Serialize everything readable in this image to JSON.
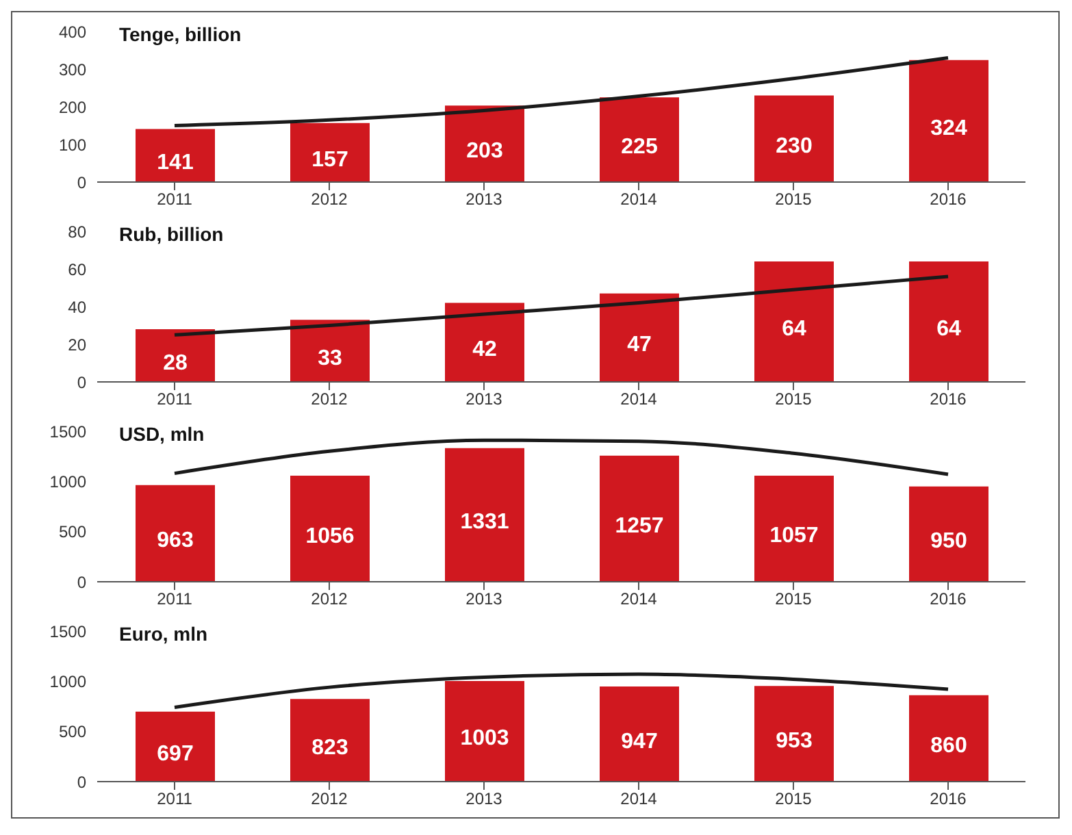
{
  "chart_data": [
    {
      "type": "bar",
      "title": "Tenge, billion",
      "categories": [
        "2011",
        "2012",
        "2013",
        "2014",
        "2015",
        "2016"
      ],
      "series": [
        {
          "color": "#d0181f",
          "values": [
            141,
            157,
            203,
            225,
            230,
            324
          ],
          "value_labels": [
            "141",
            "157",
            "203",
            "225",
            "230",
            "324"
          ]
        },
        {
          "type": "line",
          "color": "#1a1a1a",
          "marker": "none",
          "line_style": "solid",
          "values": [
            150,
            165,
            190,
            228,
            275,
            330
          ]
        }
      ],
      "ylim": [
        0,
        400
      ],
      "yticks": [
        0,
        100,
        200,
        300,
        400
      ],
      "grid": false,
      "legend": false
    },
    {
      "type": "bar",
      "title": "Rub, billion",
      "categories": [
        "2011",
        "2012",
        "2013",
        "2014",
        "2015",
        "2016"
      ],
      "series": [
        {
          "color": "#d0181f",
          "values": [
            28,
            33,
            42,
            47,
            64,
            64
          ],
          "value_labels": [
            "28",
            "33",
            "42",
            "47",
            "64",
            "64"
          ]
        },
        {
          "type": "line",
          "color": "#1a1a1a",
          "marker": "none",
          "line_style": "solid",
          "values": [
            25,
            30,
            36,
            42,
            49,
            56
          ]
        }
      ],
      "ylim": [
        0,
        80
      ],
      "yticks": [
        0,
        20,
        40,
        60,
        80
      ],
      "grid": false,
      "legend": false
    },
    {
      "type": "bar",
      "title": "USD, mln",
      "categories": [
        "2011",
        "2012",
        "2013",
        "2014",
        "2015",
        "2016"
      ],
      "series": [
        {
          "color": "#d0181f",
          "values": [
            963,
            1056,
            1331,
            1257,
            1057,
            950
          ],
          "value_labels": [
            "963",
            "1056",
            "1331",
            "1257",
            "1057",
            "950"
          ]
        },
        {
          "type": "line",
          "color": "#1a1a1a",
          "marker": "none",
          "line_style": "solid",
          "values": [
            1080,
            1300,
            1410,
            1400,
            1280,
            1070
          ]
        }
      ],
      "ylim": [
        0,
        1500
      ],
      "yticks": [
        0,
        500,
        1000,
        1500
      ],
      "grid": false,
      "legend": false
    },
    {
      "type": "bar",
      "title": "Euro, mln",
      "categories": [
        "2011",
        "2012",
        "2013",
        "2014",
        "2015",
        "2016"
      ],
      "series": [
        {
          "color": "#d0181f",
          "values": [
            697,
            823,
            1003,
            947,
            953,
            860
          ],
          "value_labels": [
            "697",
            "823",
            "1003",
            "947",
            "953",
            "860"
          ]
        },
        {
          "type": "line",
          "color": "#1a1a1a",
          "marker": "none",
          "line_style": "solid",
          "values": [
            740,
            940,
            1040,
            1070,
            1020,
            920
          ]
        }
      ],
      "ylim": [
        0,
        1500
      ],
      "yticks": [
        0,
        500,
        1000,
        1500
      ],
      "grid": false,
      "legend": false
    }
  ]
}
